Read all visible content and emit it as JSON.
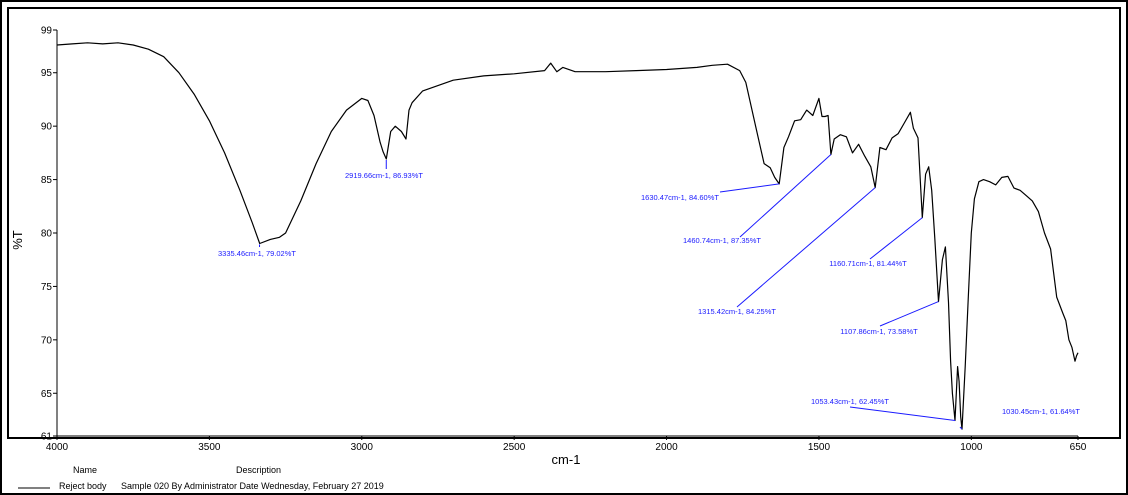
{
  "chart_data": {
    "type": "line",
    "title": "",
    "xlabel": "cm-1",
    "ylabel": "%T",
    "xlim": [
      4000,
      650
    ],
    "ylim": [
      61,
      99
    ],
    "x_reversed": true,
    "grid": false,
    "x_ticks": [
      4000,
      3500,
      3000,
      2500,
      2000,
      1500,
      1000,
      650
    ],
    "y_ticks": [
      61,
      65,
      70,
      75,
      80,
      85,
      90,
      95,
      99
    ],
    "line_color": "#000000",
    "annotation_color": "#1a1aff",
    "series": [
      {
        "x": [
          4000,
          3950,
          3900,
          3850,
          3800,
          3750,
          3700,
          3650,
          3600,
          3550,
          3500,
          3450,
          3400,
          3360,
          3335,
          3300,
          3270,
          3250,
          3200,
          3150,
          3100,
          3050,
          3000,
          2980,
          2960,
          2940,
          2930,
          2919.66,
          2905,
          2890,
          2870,
          2855,
          2845,
          2835,
          2800,
          2700,
          2600,
          2500,
          2400,
          2380,
          2360,
          2340,
          2300,
          2200,
          2100,
          2000,
          1900,
          1850,
          1800,
          1760,
          1740,
          1700,
          1680,
          1660,
          1645,
          1630.47,
          1615,
          1600,
          1580,
          1560,
          1540,
          1520,
          1500,
          1490,
          1480,
          1470,
          1460.74,
          1450,
          1430,
          1410,
          1390,
          1370,
          1350,
          1330,
          1315.42,
          1300,
          1280,
          1260,
          1240,
          1220,
          1200,
          1190,
          1175,
          1160.71,
          1150,
          1140,
          1130,
          1120,
          1107.86,
          1095,
          1085,
          1075,
          1068,
          1062,
          1053.43,
          1045,
          1040,
          1035,
          1030.45,
          1020,
          1010,
          1000,
          990,
          975,
          960,
          940,
          920,
          900,
          880,
          860,
          840,
          820,
          800,
          780,
          760,
          740,
          720,
          700,
          690,
          680,
          670,
          660,
          655,
          650
        ],
        "values": [
          97.6,
          97.7,
          97.8,
          97.7,
          97.8,
          97.6,
          97.2,
          96.5,
          95,
          93,
          90.5,
          87.5,
          84,
          81,
          79.02,
          79.4,
          79.6,
          80,
          83,
          86.5,
          89.5,
          91.5,
          92.6,
          92.4,
          91,
          88.5,
          87.6,
          86.93,
          89.5,
          90,
          89.5,
          88.8,
          91.5,
          92.2,
          93.3,
          94.3,
          94.7,
          94.9,
          95.2,
          95.9,
          95.1,
          95.5,
          95.1,
          95.1,
          95.2,
          95.3,
          95.5,
          95.7,
          95.8,
          95.2,
          94.1,
          89,
          86.5,
          86.1,
          85.2,
          84.6,
          88,
          89,
          90.5,
          90.6,
          91.5,
          91,
          92.6,
          90.9,
          90.9,
          91,
          87.35,
          88.8,
          89.2,
          89,
          87.5,
          88.3,
          87.2,
          86.2,
          84.25,
          88,
          87.8,
          88.9,
          89.3,
          90.3,
          91.3,
          89.8,
          88.9,
          81.44,
          85.5,
          86.2,
          84,
          79.5,
          73.58,
          77.5,
          78.7,
          73.5,
          68,
          65,
          62.45,
          67.5,
          66.1,
          62.8,
          61.64,
          67.5,
          74,
          80,
          83.2,
          84.8,
          85,
          84.8,
          84.5,
          85.2,
          85.3,
          84.2,
          84,
          83.5,
          83,
          82,
          80,
          78.5,
          74,
          72.5,
          71.8,
          70,
          69.3,
          68,
          68.5,
          68.8
        ]
      }
    ],
    "annotations": [
      {
        "x": 3335.46,
        "y": 79.02,
        "label": "3335.46cm-1, 79.02%T"
      },
      {
        "x": 2919.66,
        "y": 86.93,
        "label": "2919.66cm-1, 86.93%T"
      },
      {
        "x": 1630.47,
        "y": 84.6,
        "label": "1630.47cm-1, 84.60%T"
      },
      {
        "x": 1460.74,
        "y": 87.35,
        "label": "1460.74cm-1, 87.35%T"
      },
      {
        "x": 1315.42,
        "y": 84.25,
        "label": "1315.42cm-1, 84.25%T"
      },
      {
        "x": 1160.71,
        "y": 81.44,
        "label": "1160.71cm-1, 81.44%T"
      },
      {
        "x": 1107.86,
        "y": 73.58,
        "label": "1107.86cm-1, 73.58%T"
      },
      {
        "x": 1053.43,
        "y": 62.45,
        "label": "1053.43cm-1, 62.45%T"
      },
      {
        "x": 1030.45,
        "y": 61.64,
        "label": "1030.45cm-1, 61.64%T"
      }
    ]
  },
  "legend": {
    "name_header": "Name",
    "description_header": "Description",
    "name": "Reject body",
    "description": "Sample 020 By Administrator Date Wednesday, February 27 2019"
  }
}
